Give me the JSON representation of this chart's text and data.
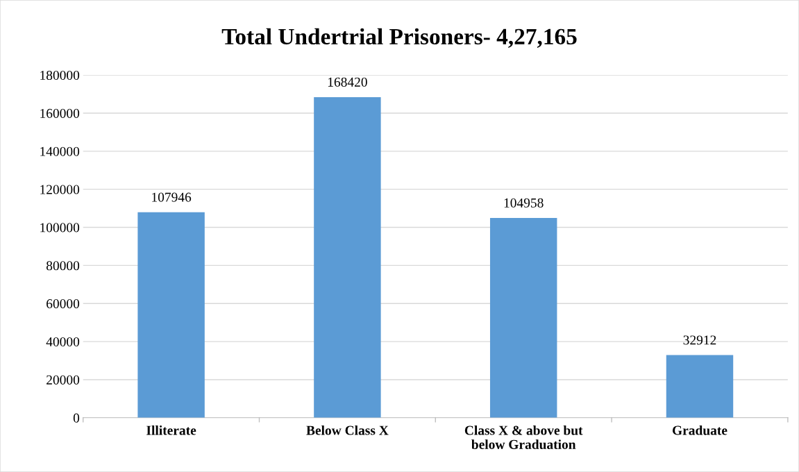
{
  "chart_data": {
    "type": "bar",
    "title": "Total Undertrial Prisoners- 4,27,165",
    "categories": [
      "Illiterate",
      "Below Class X",
      "Class X & above but below Graduation",
      "Graduate"
    ],
    "values": [
      107946,
      168420,
      104958,
      32912
    ],
    "color": "#5b9bd5",
    "ylim": [
      0,
      180000
    ],
    "yticks": [
      0,
      20000,
      40000,
      60000,
      80000,
      100000,
      120000,
      140000,
      160000,
      180000
    ],
    "grid": "y",
    "data_labels": true
  }
}
